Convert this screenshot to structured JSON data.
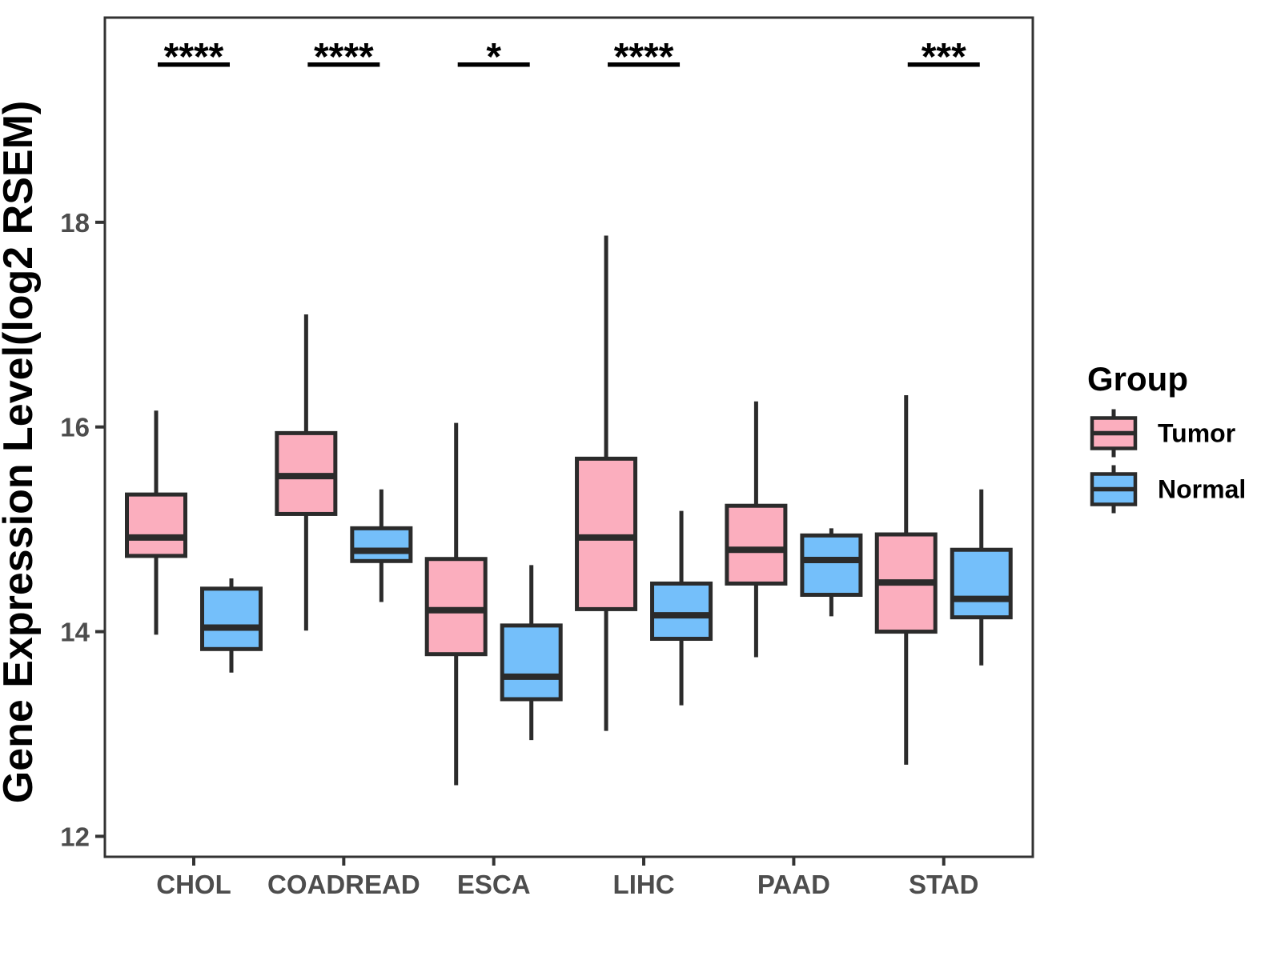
{
  "figure": {
    "ylabel": "Gene Expression Level(log2 RSEM)",
    "xlabel": ""
  },
  "style": {
    "box_outline": "#2b2b2b",
    "axis_color": "#333333",
    "tick_label_color": "#4d4d4d",
    "text_color": "#000000",
    "tumor_color": "#fbaebe",
    "normal_color": "#74bffa",
    "background": "#ffffff"
  },
  "chart_data": {
    "type": "boxplot",
    "title": "",
    "xlabel": "",
    "ylabel": "Gene Expression Level(log2 RSEM)",
    "categories": [
      "CHOL",
      "COADREAD",
      "ESCA",
      "LIHC",
      "PAAD",
      "STAD"
    ],
    "yticks": [
      12,
      14,
      16,
      18
    ],
    "ylim": [
      11.8,
      20.0
    ],
    "grid": false,
    "legend": {
      "title": "Group",
      "position": "right",
      "entries": [
        {
          "name": "Tumor",
          "color": "#fbaebe"
        },
        {
          "name": "Normal",
          "color": "#74bffa"
        }
      ]
    },
    "series": [
      {
        "name": "Tumor",
        "color": "#fbaebe",
        "boxes": [
          {
            "category": "CHOL",
            "whisker_low": 13.97,
            "q1": 14.74,
            "median": 14.92,
            "q3": 15.34,
            "whisker_high": 16.16
          },
          {
            "category": "COADREAD",
            "whisker_low": 14.01,
            "q1": 15.15,
            "median": 15.52,
            "q3": 15.94,
            "whisker_high": 17.1
          },
          {
            "category": "ESCA",
            "whisker_low": 12.5,
            "q1": 13.78,
            "median": 14.21,
            "q3": 14.71,
            "whisker_high": 16.04
          },
          {
            "category": "LIHC",
            "whisker_low": 13.03,
            "q1": 14.22,
            "median": 14.92,
            "q3": 15.69,
            "whisker_high": 17.87
          },
          {
            "category": "PAAD",
            "whisker_low": 13.75,
            "q1": 14.47,
            "median": 14.8,
            "q3": 15.23,
            "whisker_high": 16.25
          },
          {
            "category": "STAD",
            "whisker_low": 12.7,
            "q1": 14.0,
            "median": 14.48,
            "q3": 14.95,
            "whisker_high": 16.31
          }
        ]
      },
      {
        "name": "Normal",
        "color": "#74bffa",
        "boxes": [
          {
            "category": "CHOL",
            "whisker_low": 13.6,
            "q1": 13.83,
            "median": 14.04,
            "q3": 14.42,
            "whisker_high": 14.52
          },
          {
            "category": "COADREAD",
            "whisker_low": 14.29,
            "q1": 14.69,
            "median": 14.79,
            "q3": 15.01,
            "whisker_high": 15.39
          },
          {
            "category": "ESCA",
            "whisker_low": 12.94,
            "q1": 13.34,
            "median": 13.56,
            "q3": 14.06,
            "whisker_high": 14.65
          },
          {
            "category": "LIHC",
            "whisker_low": 13.28,
            "q1": 13.93,
            "median": 14.16,
            "q3": 14.47,
            "whisker_high": 15.18
          },
          {
            "category": "PAAD",
            "whisker_low": 14.15,
            "q1": 14.36,
            "median": 14.7,
            "q3": 14.94,
            "whisker_high": 15.01
          },
          {
            "category": "STAD",
            "whisker_low": 13.67,
            "q1": 14.14,
            "median": 14.32,
            "q3": 14.8,
            "whisker_high": 15.39
          }
        ]
      }
    ],
    "annotations": [
      {
        "category": "CHOL",
        "label": "****"
      },
      {
        "category": "COADREAD",
        "label": "****"
      },
      {
        "category": "ESCA",
        "label": "*"
      },
      {
        "category": "LIHC",
        "label": "****"
      },
      {
        "category": "STAD",
        "label": "***"
      }
    ]
  }
}
